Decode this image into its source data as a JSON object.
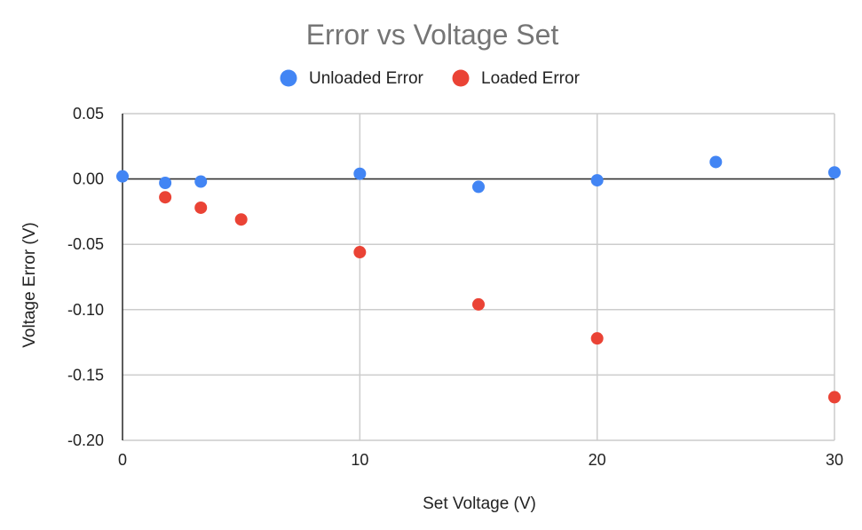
{
  "chart_data": {
    "type": "scatter",
    "title": "Error vs Voltage Set",
    "xlabel": "Set Voltage (V)",
    "ylabel": "Voltage Error (V)",
    "xlim": [
      0,
      30
    ],
    "ylim": [
      -0.2,
      0.05
    ],
    "x_ticks": [
      0,
      10,
      20,
      30
    ],
    "x_tick_labels": [
      "0",
      "10",
      "20",
      "30"
    ],
    "y_ticks": [
      0.05,
      0.0,
      -0.05,
      -0.1,
      -0.15,
      -0.2
    ],
    "y_tick_labels": [
      "0.05",
      "0.00",
      "-0.05",
      "-0.10",
      "-0.15",
      "-0.20"
    ],
    "grid": true,
    "legend_position": "top",
    "series": [
      {
        "name": "Unloaded Error",
        "color": "#4285F4",
        "x": [
          0,
          1.8,
          3.3,
          10,
          15,
          20,
          25,
          30
        ],
        "y": [
          0.002,
          -0.003,
          -0.002,
          0.004,
          -0.006,
          -0.001,
          0.013,
          0.005
        ]
      },
      {
        "name": "Loaded Error",
        "color": "#EA4335",
        "x": [
          1.8,
          3.3,
          5,
          10,
          15,
          20,
          30
        ],
        "y": [
          -0.014,
          -0.022,
          -0.031,
          -0.056,
          -0.096,
          -0.122,
          -0.167
        ]
      }
    ]
  }
}
